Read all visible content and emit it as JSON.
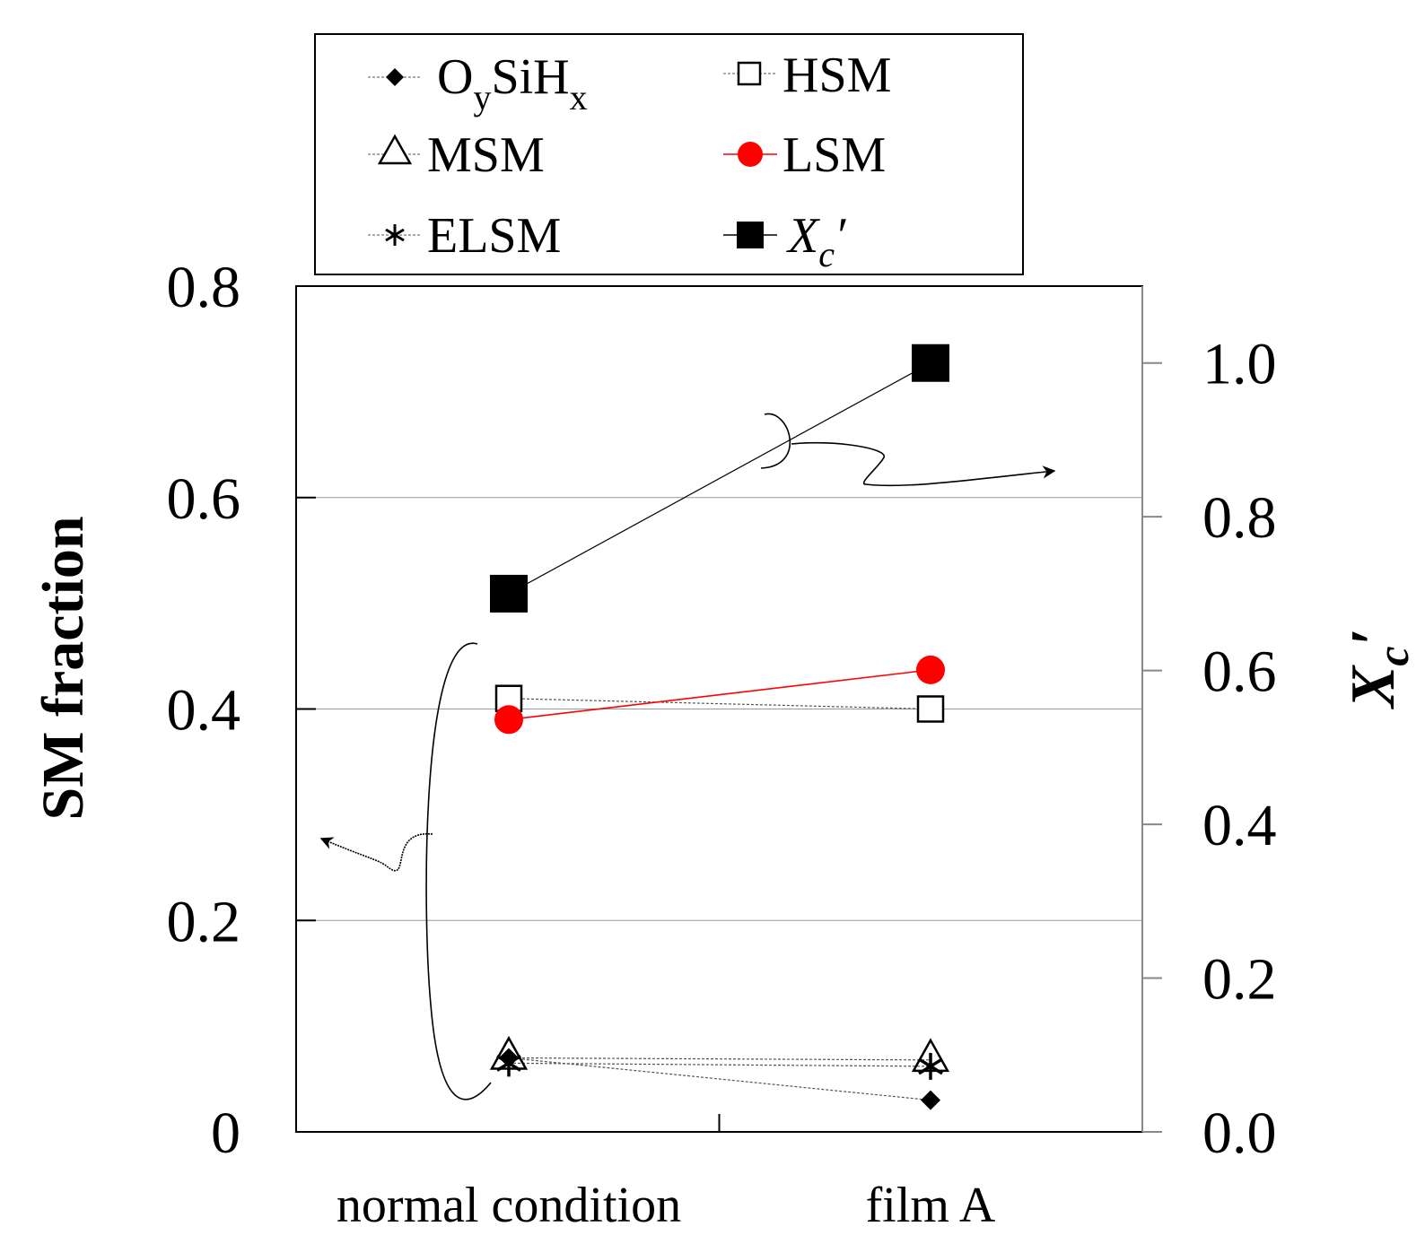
{
  "chart_data": {
    "type": "line",
    "categories": [
      "normal condition",
      "film A"
    ],
    "y_left": {
      "label": "SM fraction",
      "range": [
        0,
        0.8
      ],
      "ticks": [
        0,
        0.2,
        0.4,
        0.6,
        0.8
      ],
      "tick_labels": [
        "0",
        "0.2",
        "0.4",
        "0.6",
        "0.8"
      ]
    },
    "y_right": {
      "label_main": "X",
      "label_sub": "c",
      "label_prime": "′",
      "range": [
        0,
        1.1
      ],
      "ticks": [
        0,
        0.2,
        0.4,
        0.6,
        0.8,
        1.0
      ],
      "tick_labels": [
        "0.0",
        "0.2",
        "0.4",
        "0.6",
        "0.8",
        "1.0"
      ]
    },
    "gridlines_left": [
      0.2,
      0.4,
      0.6
    ],
    "series": [
      {
        "key": "oysihx",
        "name": "OySiHx",
        "name_main": "O",
        "name_sub1": "y",
        "name_mid": "SiH",
        "name_sub2": "x",
        "marker": "diamond",
        "color": "#000000",
        "line_color": "#555555",
        "axis": "left",
        "values": [
          0.07,
          0.03
        ]
      },
      {
        "key": "hsm",
        "name": "HSM",
        "marker": "square-open",
        "color": "#000000",
        "line_color": "#555555",
        "axis": "left",
        "values": [
          0.41,
          0.4
        ]
      },
      {
        "key": "msm",
        "name": "MSM",
        "marker": "triangle-open",
        "color": "#000000",
        "line_color": "#555555",
        "axis": "left",
        "values": [
          0.07,
          0.068
        ]
      },
      {
        "key": "lsm",
        "name": "LSM",
        "marker": "circle",
        "color": "#ff0000",
        "line_color": "#ff0000",
        "axis": "left",
        "values": [
          0.39,
          0.437
        ]
      },
      {
        "key": "elsm",
        "name": "ELSM",
        "marker": "asterisk",
        "color": "#000000",
        "line_color": "#555555",
        "axis": "left",
        "values": [
          0.065,
          0.062
        ]
      },
      {
        "key": "xc",
        "name": "Xc′",
        "name_main": "X",
        "name_sub": "c",
        "name_prime": "′",
        "marker": "square-filled",
        "color": "#000000",
        "line_color": "#000000",
        "axis": "right",
        "values": [
          0.7,
          1.0
        ]
      }
    ],
    "annotations": [
      {
        "text": "",
        "description": "bracket around HSM/LSM/MSM/ELSM/OySiHx points with arrow pointing to left axis"
      },
      {
        "text": "",
        "description": "bracket around Xc′ line with arrow pointing to right axis"
      }
    ]
  }
}
